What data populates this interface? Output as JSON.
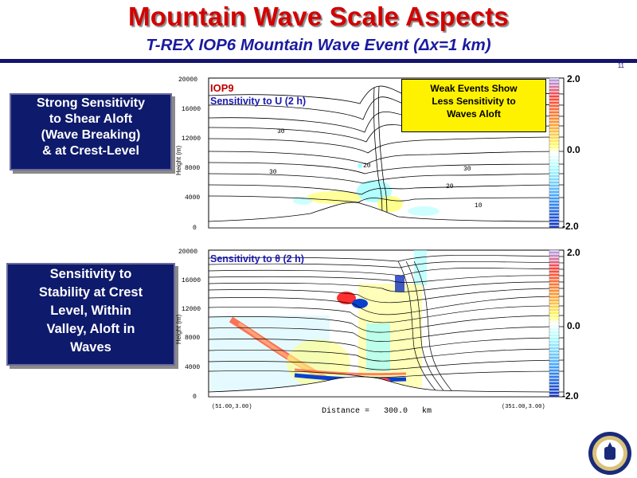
{
  "slide": {
    "title": "Mountain Wave Scale Aspects",
    "subtitle": "T-REX IOP6 Mountain Wave Event (Δx=1 km)",
    "page_number": "11"
  },
  "left_boxes": {
    "top_lines": [
      "Strong Sensitivity",
      "to Shear Aloft",
      "(Wave Breaking)",
      "& at Crest-Level"
    ],
    "bottom_lines": [
      "Sensitivity to",
      "Stability at Crest",
      "Level, Within",
      "Valley, Aloft in",
      "Waves"
    ]
  },
  "top_panel": {
    "label_iop": "IOP9",
    "label_sens": "Sensitivity to U (2 h)",
    "note": [
      "Weak Events Show",
      "Less Sensitivity to",
      "Waves Aloft"
    ],
    "y_axis_title": "Height (m)",
    "y_ticks": [
      "20000",
      "16000",
      "12000",
      "8000",
      "4000",
      "0"
    ],
    "contour_labels": [
      "30",
      "30",
      "20",
      "10",
      "30",
      "20"
    ],
    "colorbar_ticks": [
      "2.0",
      "0.0",
      "-2.0"
    ]
  },
  "bottom_panel": {
    "label_sens": "Sensitivity to θ (2 h)",
    "y_axis_title": "Height (m)",
    "y_ticks": [
      "20000",
      "16000",
      "12000",
      "8000",
      "4000",
      "0"
    ],
    "colorbar_ticks": [
      "2.0",
      "0.0",
      "-2.0"
    ],
    "x_left": "(51.00,3.00)",
    "x_right": "(351.00,3.00)",
    "x_label": "Distance =",
    "x_value": "300.0",
    "x_unit": "km"
  },
  "colors": {
    "title": "#d40000",
    "subtitle": "#1a1aa0",
    "navy": "#0e1a6b",
    "note_bg": "#fff200"
  }
}
